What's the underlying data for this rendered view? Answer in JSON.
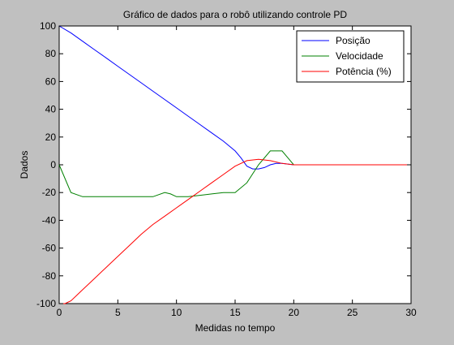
{
  "chart_data": {
    "type": "line",
    "title": "Gráfico de dados para o robô utilizando controle PD",
    "xlabel": "Medidas no tempo",
    "ylabel": "Dados",
    "xlim": [
      0,
      30
    ],
    "ylim": [
      -100,
      100
    ],
    "xticks": [
      0,
      5,
      10,
      15,
      20,
      25,
      30
    ],
    "yticks": [
      100,
      80,
      60,
      40,
      20,
      0,
      -20,
      -40,
      -60,
      -80,
      -100
    ],
    "grid": false,
    "legend_position": "top-right",
    "series": [
      {
        "name": "Posição",
        "color": "#0000ff",
        "points": [
          [
            0,
            100
          ],
          [
            1,
            95
          ],
          [
            2,
            89
          ],
          [
            3,
            83
          ],
          [
            4,
            77
          ],
          [
            5,
            71
          ],
          [
            6,
            65
          ],
          [
            7,
            59
          ],
          [
            8,
            53
          ],
          [
            9,
            47
          ],
          [
            10,
            41
          ],
          [
            11,
            35
          ],
          [
            12,
            29
          ],
          [
            13,
            23
          ],
          [
            14,
            17
          ],
          [
            15,
            10
          ],
          [
            15.5,
            5
          ],
          [
            16,
            -1
          ],
          [
            16.5,
            -3
          ],
          [
            17,
            -3
          ],
          [
            17.5,
            -2
          ],
          [
            18,
            0
          ],
          [
            18.5,
            1
          ],
          [
            19,
            1
          ],
          [
            19.5,
            0.5
          ],
          [
            20,
            0
          ],
          [
            30,
            0
          ]
        ]
      },
      {
        "name": "Velocidade",
        "color": "#008000",
        "points": [
          [
            0,
            0
          ],
          [
            1,
            -20
          ],
          [
            2,
            -23
          ],
          [
            3,
            -23
          ],
          [
            4,
            -23
          ],
          [
            5,
            -23
          ],
          [
            6,
            -23
          ],
          [
            7,
            -23
          ],
          [
            8,
            -23
          ],
          [
            9,
            -20
          ],
          [
            9.5,
            -21
          ],
          [
            10,
            -23
          ],
          [
            11,
            -23
          ],
          [
            12,
            -22
          ],
          [
            13,
            -21
          ],
          [
            14,
            -20
          ],
          [
            15,
            -20
          ],
          [
            16,
            -13
          ],
          [
            17,
            0
          ],
          [
            18,
            10
          ],
          [
            19,
            10
          ],
          [
            19.5,
            5
          ],
          [
            20,
            0
          ],
          [
            30,
            0
          ]
        ]
      },
      {
        "name": "Potência (%)",
        "color": "#ff0000",
        "points": [
          [
            0,
            -100
          ],
          [
            0.5,
            -100
          ],
          [
            1,
            -98
          ],
          [
            2,
            -90
          ],
          [
            3,
            -82
          ],
          [
            4,
            -74
          ],
          [
            5,
            -66
          ],
          [
            6,
            -58
          ],
          [
            7,
            -50
          ],
          [
            8,
            -43
          ],
          [
            9,
            -37
          ],
          [
            10,
            -31
          ],
          [
            11,
            -25
          ],
          [
            12,
            -19
          ],
          [
            13,
            -13
          ],
          [
            14,
            -7
          ],
          [
            15,
            -1
          ],
          [
            16,
            3
          ],
          [
            17,
            4
          ],
          [
            18,
            3
          ],
          [
            19,
            1
          ],
          [
            20,
            0
          ],
          [
            30,
            0
          ]
        ]
      }
    ]
  }
}
